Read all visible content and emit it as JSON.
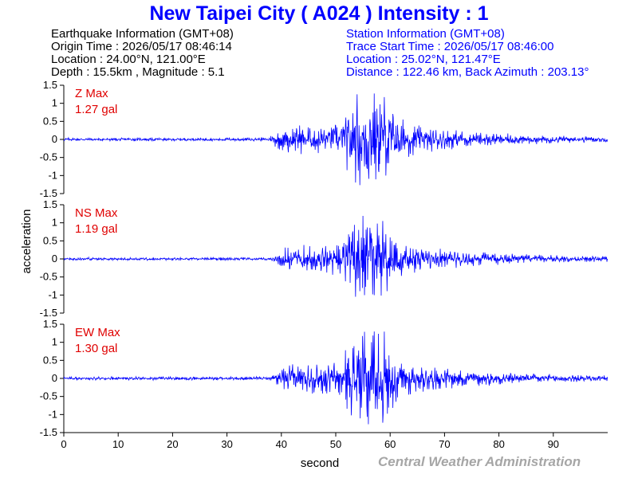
{
  "title": "New Taipei City ( A024 ) Intensity : 1",
  "earthquake_info": {
    "heading": "Earthquake Information  (GMT+08)",
    "origin_time": "Origin Time : 2026/05/17 08:46:14",
    "location": "Location : 24.00°N, 121.00°E",
    "depth_magnitude": "Depth : 15.5km , Magnitude : 5.1"
  },
  "station_info": {
    "heading": "Station Information  (GMT+08)",
    "trace_start": "Trace Start Time : 2026/05/17 08:46:00",
    "location": "Location : 25.02°N, 121.47°E",
    "distance": "Distance : 122.46 km, Back Azimuth : 203.13°"
  },
  "credit": "Central Weather Administration",
  "colors": {
    "title": "#0000ff",
    "trace": "#0000ff",
    "max_label": "#e00000",
    "credit": "#a6a6a6"
  },
  "chart_data": {
    "type": "line",
    "xlabel": "second",
    "ylabel": "acceleration",
    "xlim": [
      0,
      100
    ],
    "xticks": [
      "0",
      "10",
      "20",
      "30",
      "40",
      "50",
      "60",
      "70",
      "80",
      "90"
    ],
    "ylim": [
      -1.5,
      1.5
    ],
    "yticks": [
      "1.5",
      "1",
      "0.5",
      "0",
      "-0.5",
      "-1",
      "-1.5"
    ],
    "grid": false,
    "series": [
      {
        "name": "Z Max",
        "max_label": "1.27 gal",
        "peak": 1.27,
        "onset": 37.5,
        "peak_time": 56
      },
      {
        "name": "NS Max",
        "max_label": "1.19 gal",
        "peak": 1.19,
        "onset": 38,
        "peak_time": 56
      },
      {
        "name": "EW Max",
        "max_label": "1.30 gal",
        "peak": 1.3,
        "onset": 38,
        "peak_time": 56
      }
    ]
  }
}
